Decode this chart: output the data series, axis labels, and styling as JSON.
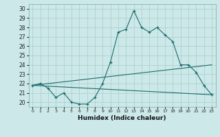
{
  "xlabel": "Humidex (Indice chaleur)",
  "bg_color": "#cce8e8",
  "line_color": "#1a6b6b",
  "grid_color": "#aacccc",
  "xlim": [
    -0.5,
    23.5
  ],
  "ylim": [
    19.5,
    30.5
  ],
  "yticks": [
    20,
    21,
    22,
    23,
    24,
    25,
    26,
    27,
    28,
    29,
    30
  ],
  "xticks": [
    0,
    1,
    2,
    3,
    4,
    5,
    6,
    7,
    8,
    9,
    10,
    11,
    12,
    13,
    14,
    15,
    16,
    17,
    18,
    19,
    20,
    21,
    22,
    23
  ],
  "line1_x": [
    0,
    1,
    2,
    3,
    4,
    5,
    6,
    7,
    8,
    9,
    10,
    11,
    12,
    13,
    14,
    15,
    16,
    17,
    18,
    19,
    20,
    21,
    22,
    23
  ],
  "line1_y": [
    21.8,
    22.0,
    21.5,
    20.5,
    21.0,
    20.0,
    19.8,
    19.8,
    20.5,
    22.0,
    24.3,
    27.5,
    27.8,
    29.8,
    28.0,
    27.5,
    28.0,
    27.2,
    26.5,
    24.0,
    24.0,
    23.2,
    21.8,
    20.8
  ],
  "line2_x": [
    0,
    23
  ],
  "line2_y": [
    21.8,
    24.0
  ],
  "line3_x": [
    0,
    23
  ],
  "line3_y": [
    21.8,
    20.8
  ]
}
